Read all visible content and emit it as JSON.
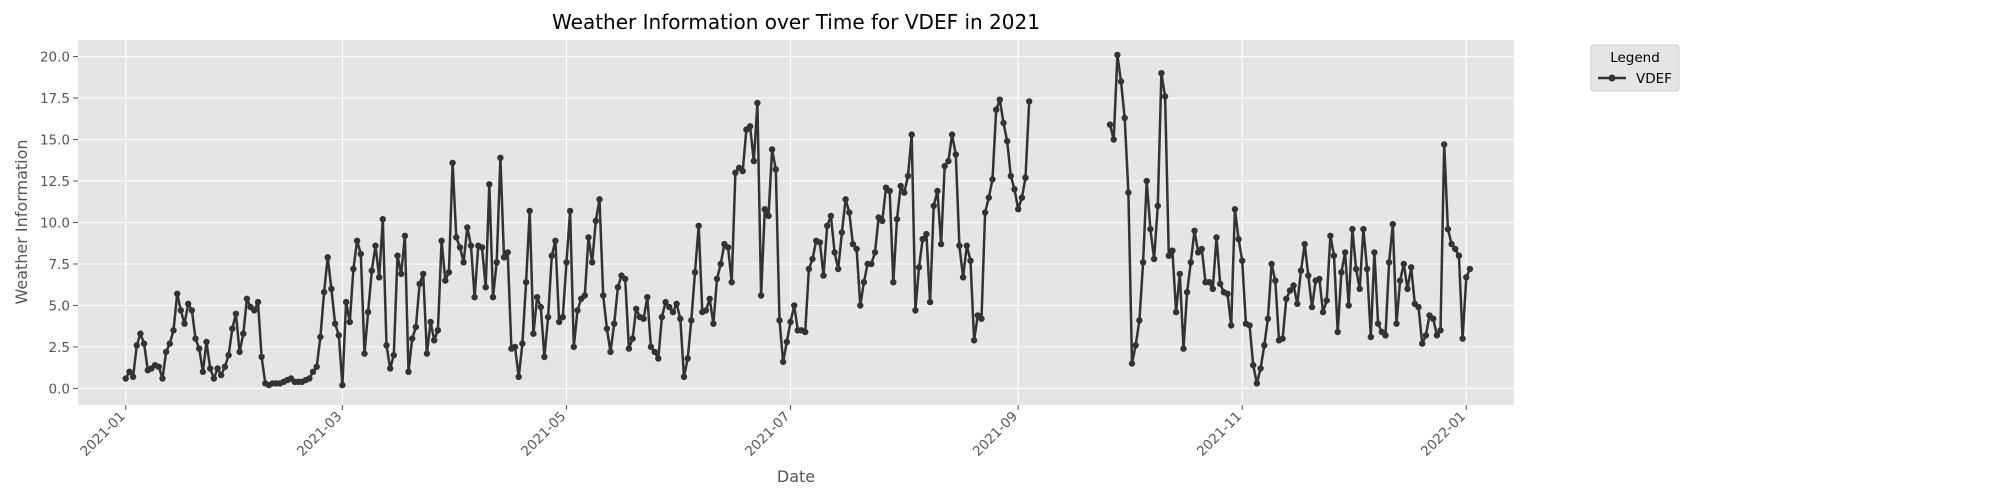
{
  "chart_data": {
    "type": "line",
    "title": "Weather Information over Time for VDEF in 2021",
    "xlabel": "Date",
    "ylabel": "Weather Information",
    "xlim": [
      "2020-12-19",
      "2022-01-14"
    ],
    "ylim": [
      -1.0,
      21.0
    ],
    "xticks": [
      "2021-01",
      "2021-03",
      "2021-05",
      "2021-07",
      "2021-09",
      "2021-11",
      "2022-01"
    ],
    "yticks": [
      "0.0",
      "2.5",
      "5.0",
      "7.5",
      "10.0",
      "12.5",
      "15.0",
      "17.5",
      "20.0"
    ],
    "grid": true,
    "background": "#e5e5e5",
    "line_color": "#333333",
    "legend": {
      "title": "Legend",
      "placement": "outside-top-right",
      "entries": [
        "VDEF"
      ]
    },
    "series": [
      {
        "name": "VDEF",
        "segments": [
          {
            "start": "2021-01-01",
            "values": [
              0.6,
              1.0,
              0.7,
              2.6,
              3.3,
              2.7,
              1.1,
              1.2,
              1.4,
              1.3,
              0.6,
              2.2,
              2.7,
              3.5,
              5.7,
              4.7,
              3.9,
              5.1,
              4.7,
              3.0,
              2.4,
              1.0,
              2.8,
              1.2,
              0.6,
              1.2,
              0.8,
              1.3,
              2.0,
              3.6,
              4.5,
              2.2,
              3.3,
              5.4,
              4.9,
              4.7,
              5.2,
              1.9,
              0.3,
              0.2,
              0.3,
              0.3,
              0.3,
              0.4,
              0.5,
              0.6,
              0.4,
              0.4,
              0.4,
              0.5,
              0.6,
              1.0,
              1.3,
              3.1,
              5.8,
              7.9,
              6.0,
              3.9,
              3.2,
              0.2,
              5.2,
              4.0,
              7.2,
              8.9,
              8.1,
              2.1,
              4.6,
              7.1,
              8.6,
              6.7,
              10.2,
              2.6,
              1.2,
              2.0,
              8.0,
              6.9,
              9.2,
              1.0,
              3.0,
              3.7,
              6.3,
              6.9,
              2.1,
              4.0,
              2.9,
              3.5,
              8.9,
              6.5,
              7.0,
              13.6,
              9.1,
              8.5,
              7.6,
              9.7,
              8.6,
              5.5,
              8.6,
              8.5,
              6.1,
              12.3,
              5.5,
              7.6,
              13.9,
              7.9,
              8.2,
              2.4,
              2.5,
              0.7,
              2.7,
              6.4,
              10.7,
              3.3,
              5.5,
              4.9,
              1.9,
              4.3,
              8.0,
              8.9,
              4.0,
              4.3,
              7.6,
              10.7,
              2.5,
              4.7,
              5.4,
              5.6,
              9.1,
              7.6,
              10.1,
              11.4,
              5.6,
              3.6,
              2.2,
              3.9,
              6.1,
              6.8,
              6.6,
              2.4,
              3.0,
              4.8,
              4.3,
              4.2,
              5.5,
              2.5,
              2.2,
              1.8,
              4.3,
              5.2,
              4.9,
              4.6,
              5.1,
              4.2,
              0.7,
              1.8,
              4.1,
              7.0,
              9.8,
              4.6,
              4.7,
              5.4,
              3.9,
              6.6,
              7.5,
              8.7,
              8.5,
              6.4,
              13.0,
              13.3,
              13.1,
              15.6,
              15.8,
              13.7,
              17.2,
              5.6,
              10.8,
              10.4,
              14.4,
              13.2,
              4.1,
              1.6,
              2.8,
              4.0,
              5.0,
              3.5,
              3.5,
              3.4,
              7.2,
              7.8,
              8.9,
              8.8,
              6.8,
              9.8,
              10.4,
              8.2,
              7.2,
              9.4,
              11.4,
              10.6,
              8.7,
              8.4,
              5.0,
              6.4,
              7.5,
              7.5,
              8.2,
              10.3,
              10.1,
              12.1,
              11.9,
              6.4,
              10.2,
              12.2,
              11.8,
              12.8,
              15.3,
              4.7,
              7.3,
              9.0,
              9.3,
              5.2,
              11.0,
              11.9,
              8.7,
              13.4,
              13.7,
              15.3,
              14.1,
              8.6,
              6.7,
              8.6,
              7.7,
              2.9,
              4.4,
              4.2,
              10.6,
              11.5,
              12.6,
              16.8,
              17.4,
              16.0,
              14.9,
              12.8,
              12.0,
              10.8,
              11.5,
              12.7,
              17.3
            ]
          },
          {
            "start": "2021-09-26",
            "values": [
              15.9,
              15.0,
              20.1,
              18.5,
              16.3,
              11.8,
              1.5,
              2.6,
              4.1,
              7.6,
              12.5,
              9.6,
              7.8,
              11.0,
              19.0,
              17.6,
              8.0,
              8.3,
              4.6,
              6.9,
              2.4,
              5.8,
              7.6,
              9.5,
              8.2,
              8.4,
              6.4,
              6.4,
              6.0,
              9.1,
              6.3,
              5.8,
              5.7,
              3.8,
              10.8,
              9.0,
              7.7,
              3.9,
              3.8,
              1.4,
              0.3,
              1.2,
              2.6,
              4.2,
              7.5,
              6.5,
              2.9,
              3.0,
              5.4,
              5.9,
              6.2,
              5.1,
              7.1,
              8.7,
              6.8,
              4.9,
              6.5,
              6.6,
              4.6,
              5.3,
              9.2,
              8.0,
              3.4,
              7.0,
              8.2,
              5.0,
              9.6,
              7.2,
              6.0,
              9.6,
              7.2,
              3.1,
              8.2,
              3.9,
              3.4,
              3.2,
              7.6,
              9.9,
              3.9,
              6.5,
              7.5,
              6.0,
              7.3,
              5.1,
              4.9,
              2.7,
              3.2,
              4.4,
              4.2,
              3.2,
              3.5,
              14.7,
              9.6,
              8.7,
              8.4,
              8.0,
              3.0,
              6.7,
              7.2
            ]
          }
        ]
      }
    ]
  }
}
